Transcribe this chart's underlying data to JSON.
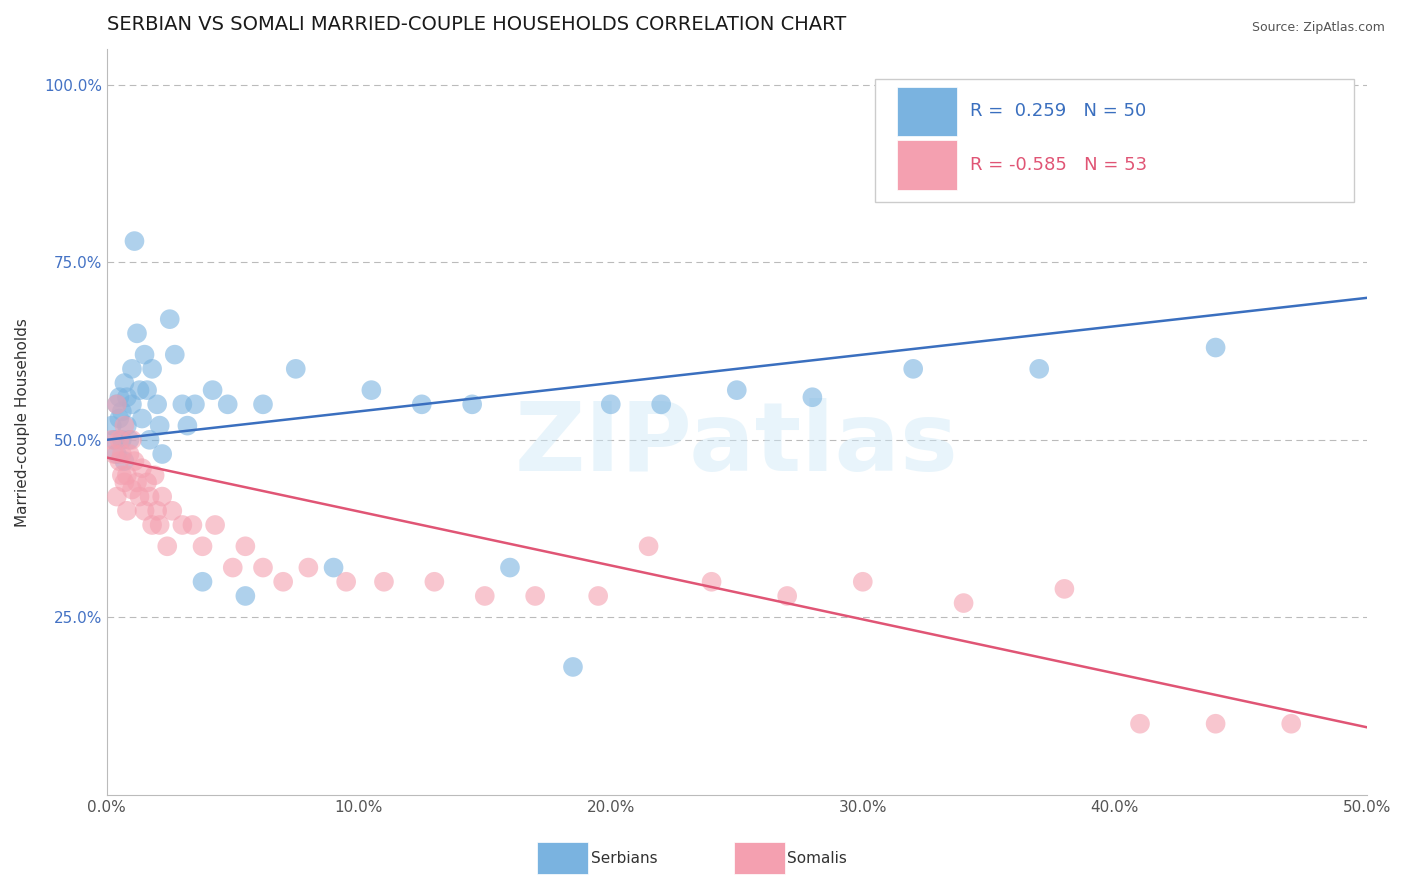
{
  "title": "SERBIAN VS SOMALI MARRIED-COUPLE HOUSEHOLDS CORRELATION CHART",
  "source_text": "Source: ZipAtlas.com",
  "ylabel": "Married-couple Households",
  "xlim": [
    0.0,
    0.5
  ],
  "ylim": [
    0.0,
    1.05
  ],
  "xticks": [
    0.0,
    0.1,
    0.2,
    0.3,
    0.4,
    0.5
  ],
  "xticklabels": [
    "0.0%",
    "10.0%",
    "20.0%",
    "30.0%",
    "40.0%",
    "50.0%"
  ],
  "yticks": [
    0.25,
    0.5,
    0.75,
    1.0
  ],
  "yticklabels": [
    "25.0%",
    "50.0%",
    "75.0%",
    "100.0%"
  ],
  "serbian_color": "#7ab3e0",
  "somali_color": "#f4a0b0",
  "serbian_line_color": "#3a6fbf",
  "somali_line_color": "#e05575",
  "R_serbian": 0.259,
  "N_serbian": 50,
  "R_somali": -0.585,
  "N_somali": 53,
  "watermark": "ZIPatlas",
  "background_color": "#ffffff",
  "grid_color": "#bbbbbb",
  "title_fontsize": 14,
  "label_fontsize": 11,
  "tick_fontsize": 11,
  "ytick_color": "#4472c4",
  "xtick_color": "#555555",
  "legend_label_serbian": "Serbians",
  "legend_label_somali": "Somalis",
  "serb_line_x0": 0.0,
  "serb_line_y0": 0.5,
  "serb_line_x1": 0.5,
  "serb_line_y1": 0.7,
  "som_line_x0": 0.0,
  "som_line_y0": 0.475,
  "som_line_x1": 0.5,
  "som_line_y1": 0.095,
  "serbian_x": [
    0.002,
    0.003,
    0.004,
    0.004,
    0.005,
    0.005,
    0.006,
    0.006,
    0.007,
    0.007,
    0.008,
    0.008,
    0.009,
    0.01,
    0.01,
    0.011,
    0.012,
    0.013,
    0.014,
    0.015,
    0.016,
    0.017,
    0.018,
    0.02,
    0.021,
    0.022,
    0.025,
    0.027,
    0.03,
    0.032,
    0.035,
    0.038,
    0.042,
    0.048,
    0.055,
    0.062,
    0.075,
    0.09,
    0.105,
    0.125,
    0.145,
    0.16,
    0.185,
    0.2,
    0.22,
    0.25,
    0.28,
    0.32,
    0.37,
    0.44
  ],
  "serbian_y": [
    0.52,
    0.5,
    0.55,
    0.48,
    0.53,
    0.56,
    0.5,
    0.54,
    0.58,
    0.47,
    0.52,
    0.56,
    0.5,
    0.55,
    0.6,
    0.78,
    0.65,
    0.57,
    0.53,
    0.62,
    0.57,
    0.5,
    0.6,
    0.55,
    0.52,
    0.48,
    0.67,
    0.62,
    0.55,
    0.52,
    0.55,
    0.3,
    0.57,
    0.55,
    0.28,
    0.55,
    0.6,
    0.32,
    0.57,
    0.55,
    0.55,
    0.32,
    0.18,
    0.55,
    0.55,
    0.57,
    0.56,
    0.6,
    0.6,
    0.63
  ],
  "somali_x": [
    0.002,
    0.003,
    0.004,
    0.004,
    0.005,
    0.005,
    0.006,
    0.006,
    0.007,
    0.007,
    0.008,
    0.008,
    0.009,
    0.01,
    0.01,
    0.011,
    0.012,
    0.013,
    0.014,
    0.015,
    0.016,
    0.017,
    0.018,
    0.019,
    0.02,
    0.021,
    0.022,
    0.024,
    0.026,
    0.03,
    0.034,
    0.038,
    0.043,
    0.05,
    0.055,
    0.062,
    0.07,
    0.08,
    0.095,
    0.11,
    0.13,
    0.15,
    0.17,
    0.195,
    0.215,
    0.24,
    0.27,
    0.3,
    0.34,
    0.38,
    0.41,
    0.44,
    0.47
  ],
  "somali_y": [
    0.5,
    0.48,
    0.42,
    0.55,
    0.47,
    0.5,
    0.45,
    0.48,
    0.44,
    0.52,
    0.4,
    0.45,
    0.48,
    0.43,
    0.5,
    0.47,
    0.44,
    0.42,
    0.46,
    0.4,
    0.44,
    0.42,
    0.38,
    0.45,
    0.4,
    0.38,
    0.42,
    0.35,
    0.4,
    0.38,
    0.38,
    0.35,
    0.38,
    0.32,
    0.35,
    0.32,
    0.3,
    0.32,
    0.3,
    0.3,
    0.3,
    0.28,
    0.28,
    0.28,
    0.35,
    0.3,
    0.28,
    0.3,
    0.27,
    0.29,
    0.1,
    0.1,
    0.1
  ]
}
